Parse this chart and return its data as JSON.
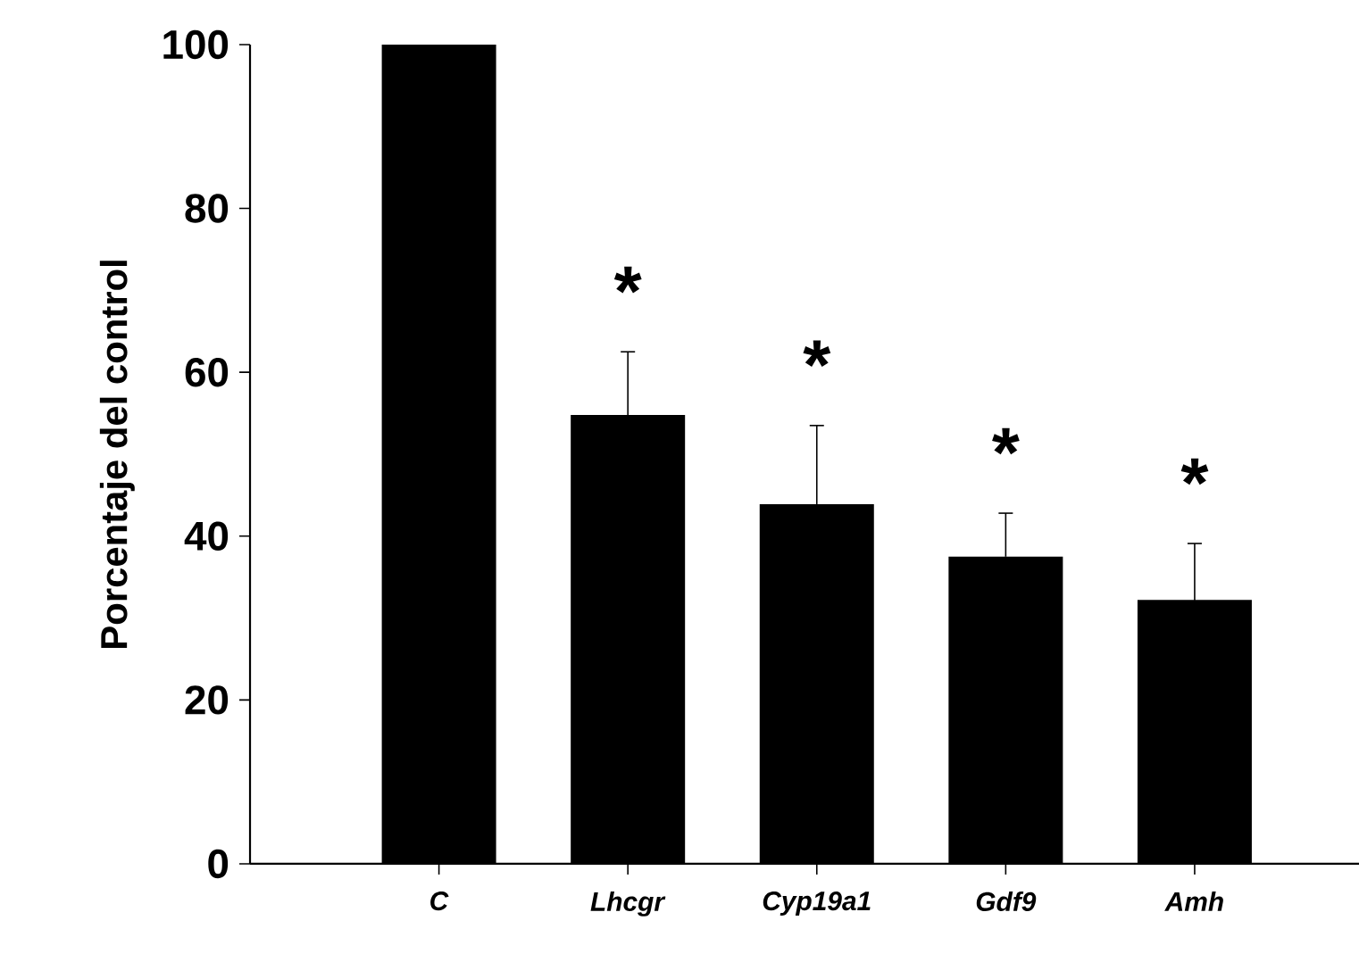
{
  "chart_data": {
    "type": "bar",
    "ylabel": "Porcentaje del control",
    "categories": [
      "*C*",
      "*Lhcgr*",
      "*Cyp19a1*",
      "*Gdf9*",
      "*Amh*"
    ],
    "values": [
      100,
      54.8,
      43.9,
      37.5,
      32.2
    ],
    "color": "#000000",
    "errors": [
      null,
      7.7,
      9.6,
      5.3,
      6.9
    ],
    "ylim": [
      0,
      100
    ],
    "yticks": [
      0,
      20,
      40,
      60,
      80,
      100
    ],
    "grid": false,
    "annotations": [
      "*",
      "*",
      "*",
      "*"
    ]
  }
}
